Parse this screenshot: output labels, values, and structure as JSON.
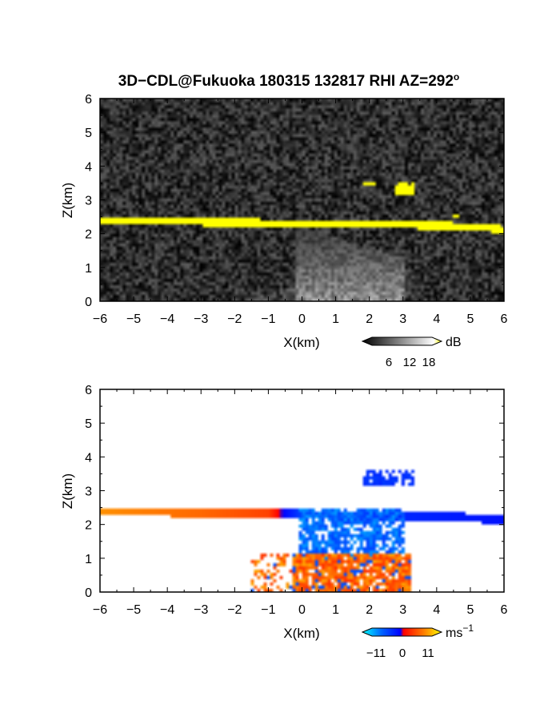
{
  "chart_data": [
    {
      "type": "heatmap",
      "id": "reflectivity",
      "title": "3D−CDL@Fukuoka 180315 132817 RHI AZ=292",
      "title_superscript": "o",
      "xlabel": "X(km)",
      "ylabel": "Z(km)",
      "xlim": [
        -6,
        6
      ],
      "ylim": [
        0,
        6
      ],
      "xticks": [
        "−6",
        "−5",
        "−4",
        "−3",
        "−2",
        "−1",
        "0",
        "1",
        "2",
        "3",
        "4",
        "5",
        "6"
      ],
      "yticks": [
        "0",
        "1",
        "2",
        "3",
        "4",
        "5",
        "6"
      ],
      "colorbar": {
        "unit": "dB",
        "ticks": [
          "6",
          "12",
          "18"
        ],
        "range": [
          0,
          21
        ],
        "colors": [
          "#000000",
          "#ffffff",
          "#ffff00"
        ]
      },
      "features": {
        "layer": {
          "x": [
            -6.0,
            -4.0,
            -2.0,
            0.0,
            2.0,
            4.0,
            5.5,
            6.0
          ],
          "z": [
            2.39,
            2.37,
            2.33,
            2.3,
            2.26,
            2.25,
            2.17,
            2.12
          ],
          "value": 19
        },
        "patches": [
          {
            "x": [
              1.8,
              2.2
            ],
            "z": [
              3.4,
              3.55
            ],
            "value": 19
          },
          {
            "x": [
              2.8,
              3.3
            ],
            "z": [
              3.1,
              3.5
            ],
            "value": 19
          },
          {
            "x": [
              4.5,
              4.7
            ],
            "z": [
              2.45,
              2.6
            ],
            "value": 19
          }
        ],
        "near_field_fan": {
          "x": [
            -0.2,
            3.0
          ],
          "z_top": [
            2.2,
            1.3
          ],
          "value": 11
        },
        "background": {
          "value": 3
        }
      }
    },
    {
      "type": "heatmap",
      "id": "doppler_velocity",
      "title": "",
      "xlabel": "X(km)",
      "ylabel": "Z(km)",
      "xlim": [
        -6,
        6
      ],
      "ylim": [
        0,
        6
      ],
      "xticks": [
        "−6",
        "−5",
        "−4",
        "−3",
        "−2",
        "−1",
        "0",
        "1",
        "2",
        "3",
        "4",
        "5",
        "6"
      ],
      "yticks": [
        "0",
        "1",
        "2",
        "3",
        "4",
        "5",
        "6"
      ],
      "colorbar": {
        "unit": "ms",
        "unit_superscript": "−1",
        "ticks": [
          "−11",
          "0",
          "11"
        ],
        "range": [
          -13,
          13
        ],
        "colors": [
          "#00ffff",
          "#0040ff",
          "#0000ff",
          "#ff0000",
          "#ff8000",
          "#ffff00"
        ]
      },
      "features": {
        "layer_velocity": {
          "x": [
            -6,
            -3,
            -1,
            0,
            1,
            3,
            6
          ],
          "v": [
            8,
            6,
            4,
            -7,
            -8,
            -4,
            -2
          ]
        },
        "negative_core": {
          "x": [
            -0.1,
            3.0
          ],
          "z": [
            1.0,
            2.5
          ],
          "v": -8
        },
        "positive_core": {
          "x": [
            -1.5,
            3.2
          ],
          "z": [
            0.0,
            1.1
          ],
          "v": 6
        },
        "upper_patch": {
          "x": [
            1.8,
            3.3
          ],
          "z": [
            3.1,
            3.6
          ],
          "v": -5
        }
      }
    }
  ]
}
